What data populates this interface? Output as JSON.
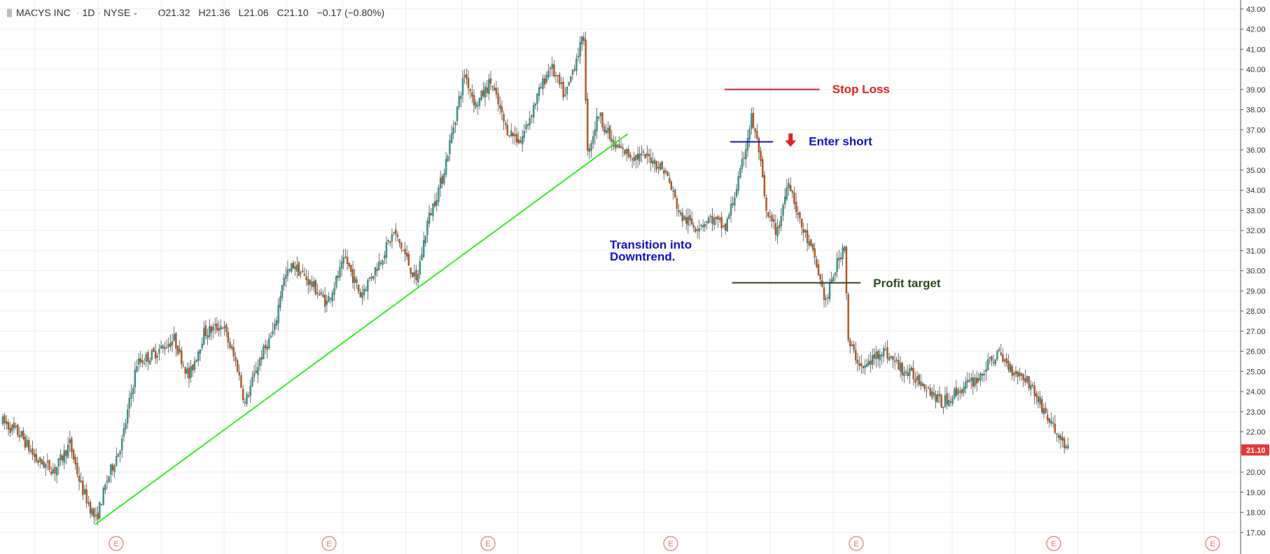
{
  "header": {
    "symbol": "MACYS INC",
    "interval": "1D",
    "exchange": "NYSE",
    "open": "O21.32",
    "high": "H21.36",
    "low": "L21.06",
    "close": "C21.10",
    "change": "−0.17 (−0.80%)"
  },
  "chart_data": {
    "type": "candlestick",
    "y_axis": {
      "side": "right",
      "ylim": [
        16.6,
        43.2
      ],
      "ticks": [
        "17.00",
        "18.00",
        "19.00",
        "20.00",
        "21.00",
        "22.00",
        "23.00",
        "24.00",
        "25.00",
        "26.00",
        "27.00",
        "28.00",
        "29.00",
        "30.00",
        "31.00",
        "32.00",
        "33.00",
        "34.00",
        "35.00",
        "36.00",
        "37.00",
        "38.00",
        "39.00",
        "40.00",
        "41.00",
        "42.00",
        "43.00"
      ]
    },
    "last_price": {
      "label": "21.10",
      "value": 21.1,
      "color": "#e53935"
    },
    "earnings_marker": {
      "label": "E",
      "count": 7,
      "color": "#e57373"
    },
    "colors": {
      "up": "#26a69a",
      "down": "#d35400",
      "wick": "#333333",
      "grid": "#eeeeee"
    },
    "price_path": [
      {
        "bar": 0,
        "price": 22.5
      },
      {
        "bar": 10,
        "price": 21.8
      },
      {
        "bar": 18,
        "price": 20.6
      },
      {
        "bar": 28,
        "price": 20.1
      },
      {
        "bar": 36,
        "price": 21.4
      },
      {
        "bar": 42,
        "price": 19.3
      },
      {
        "bar": 50,
        "price": 17.6
      },
      {
        "bar": 56,
        "price": 19.6
      },
      {
        "bar": 64,
        "price": 21.5
      },
      {
        "bar": 72,
        "price": 25.4
      },
      {
        "bar": 80,
        "price": 25.8
      },
      {
        "bar": 92,
        "price": 26.6
      },
      {
        "bar": 100,
        "price": 24.7
      },
      {
        "bar": 108,
        "price": 26.9
      },
      {
        "bar": 118,
        "price": 27.3
      },
      {
        "bar": 126,
        "price": 25.2
      },
      {
        "bar": 130,
        "price": 23.4
      },
      {
        "bar": 138,
        "price": 25.6
      },
      {
        "bar": 146,
        "price": 27.1
      },
      {
        "bar": 150,
        "price": 29.4
      },
      {
        "bar": 156,
        "price": 30.3
      },
      {
        "bar": 166,
        "price": 29.3
      },
      {
        "bar": 174,
        "price": 28.4
      },
      {
        "bar": 184,
        "price": 30.6
      },
      {
        "bar": 192,
        "price": 28.8
      },
      {
        "bar": 202,
        "price": 30.4
      },
      {
        "bar": 210,
        "price": 31.9
      },
      {
        "bar": 216,
        "price": 30.8
      },
      {
        "bar": 222,
        "price": 29.4
      },
      {
        "bar": 228,
        "price": 32.4
      },
      {
        "bar": 236,
        "price": 34.6
      },
      {
        "bar": 242,
        "price": 37.2
      },
      {
        "bar": 248,
        "price": 39.8
      },
      {
        "bar": 254,
        "price": 38.2
      },
      {
        "bar": 262,
        "price": 39.4
      },
      {
        "bar": 270,
        "price": 37.1
      },
      {
        "bar": 278,
        "price": 36.4
      },
      {
        "bar": 286,
        "price": 38.4
      },
      {
        "bar": 294,
        "price": 40.2
      },
      {
        "bar": 302,
        "price": 38.6
      },
      {
        "bar": 308,
        "price": 40.6
      },
      {
        "bar": 312,
        "price": 41.6
      },
      {
        "bar": 314,
        "price": 35.8
      },
      {
        "bar": 320,
        "price": 37.8
      },
      {
        "bar": 328,
        "price": 36.2
      },
      {
        "bar": 338,
        "price": 35.7
      },
      {
        "bar": 348,
        "price": 35.6
      },
      {
        "bar": 356,
        "price": 34.9
      },
      {
        "bar": 364,
        "price": 32.7
      },
      {
        "bar": 372,
        "price": 32.2
      },
      {
        "bar": 380,
        "price": 32.6
      },
      {
        "bar": 388,
        "price": 32.1
      },
      {
        "bar": 396,
        "price": 34.8
      },
      {
        "bar": 402,
        "price": 37.6
      },
      {
        "bar": 406,
        "price": 36.0
      },
      {
        "bar": 410,
        "price": 32.8
      },
      {
        "bar": 416,
        "price": 31.9
      },
      {
        "bar": 422,
        "price": 34.6
      },
      {
        "bar": 428,
        "price": 32.4
      },
      {
        "bar": 436,
        "price": 30.6
      },
      {
        "bar": 442,
        "price": 28.4
      },
      {
        "bar": 446,
        "price": 29.8
      },
      {
        "bar": 452,
        "price": 31.4
      },
      {
        "bar": 454,
        "price": 26.4
      },
      {
        "bar": 462,
        "price": 25.1
      },
      {
        "bar": 472,
        "price": 26.1
      },
      {
        "bar": 484,
        "price": 25.0
      },
      {
        "bar": 494,
        "price": 24.5
      },
      {
        "bar": 504,
        "price": 23.4
      },
      {
        "bar": 514,
        "price": 24.1
      },
      {
        "bar": 524,
        "price": 24.7
      },
      {
        "bar": 534,
        "price": 25.9
      },
      {
        "bar": 542,
        "price": 25.1
      },
      {
        "bar": 550,
        "price": 24.6
      },
      {
        "bar": 556,
        "price": 23.6
      },
      {
        "bar": 564,
        "price": 22.2
      },
      {
        "bar": 572,
        "price": 21.1
      }
    ],
    "bars": 573,
    "annotations": {
      "trendline": {
        "color": "#33ee22",
        "from": {
          "bar": 50,
          "price": 17.4
        },
        "to": {
          "bar": 336,
          "price": 36.8
        }
      },
      "stop_loss": {
        "label": "Stop Loss",
        "price": 39.0,
        "color": "#e02020",
        "from_bar": 388,
        "to_bar": 439
      },
      "enter_short": {
        "label": "Enter short",
        "price": 36.4,
        "color": "#1010c8",
        "arrow_color": "#e02020",
        "from_bar": 391,
        "to_bar": 414
      },
      "profit_target": {
        "label": "Profit target",
        "price": 29.4,
        "color": "#2e4a1e",
        "from_bar": 392,
        "to_bar": 461
      },
      "transition": {
        "line1": "Transition into",
        "line2": "Downtrend.",
        "color": "#1010c8"
      }
    }
  }
}
